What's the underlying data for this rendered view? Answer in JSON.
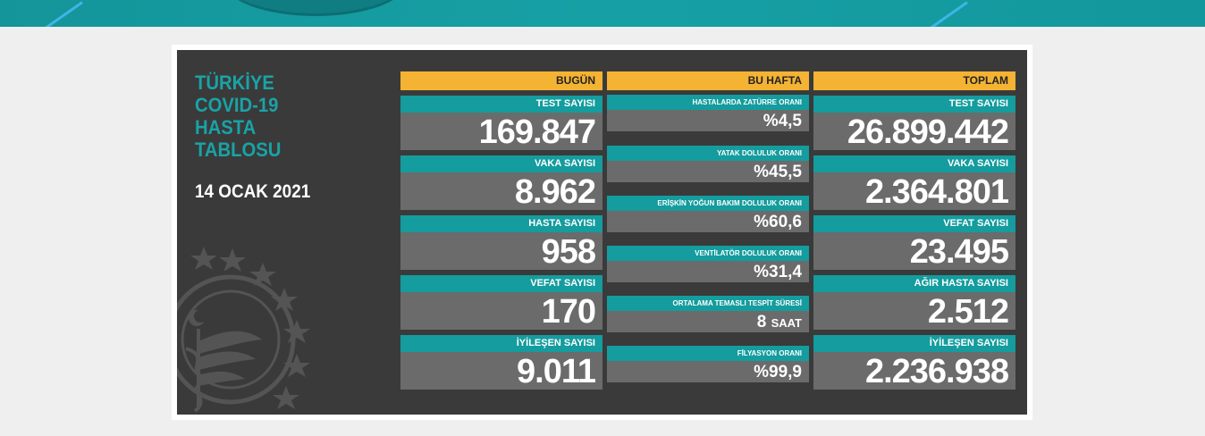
{
  "title": {
    "lines": [
      "TÜRKİYE",
      "COVID-19",
      "HASTA",
      "TABLOSU"
    ]
  },
  "date": "14 OCAK 2021",
  "columns": {
    "today": {
      "header": "BUGÜN",
      "cards": [
        {
          "label": "TEST SAYISI",
          "value": "169.847"
        },
        {
          "label": "VAKA SAYISI",
          "value": "8.962"
        },
        {
          "label": "HASTA SAYISI",
          "value": "958"
        },
        {
          "label": "VEFAT SAYISI",
          "value": "170"
        },
        {
          "label": "İYİLEŞEN SAYISI",
          "value": "9.011"
        }
      ]
    },
    "week": {
      "header": "BU HAFTA",
      "cards": [
        {
          "label": "HASTALARDA ZATÜRRE ORANI",
          "value": "%4,5",
          "unit": ""
        },
        {
          "label": "YATAK DOLULUK ORANI",
          "value": "%45,5",
          "unit": ""
        },
        {
          "label": "ERİŞKİN YOĞUN BAKIM DOLULUK ORANI",
          "value": "%60,6",
          "unit": ""
        },
        {
          "label": "VENTİLATÖR DOLULUK ORANI",
          "value": "%31,4",
          "unit": ""
        },
        {
          "label": "ORTALAMA TEMASLI TESPİT SÜRESİ",
          "value": "8",
          "unit": "SAAT"
        },
        {
          "label": "FİLYASYON ORANI",
          "value": "%99,9",
          "unit": ""
        }
      ]
    },
    "total": {
      "header": "TOPLAM",
      "cards": [
        {
          "label": "TEST SAYISI",
          "value": "26.899.442"
        },
        {
          "label": "VAKA SAYISI",
          "value": "2.364.801"
        },
        {
          "label": "VEFAT SAYISI",
          "value": "23.495"
        },
        {
          "label": "AĞIR HASTA SAYISI",
          "value": "2.512"
        },
        {
          "label": "İYİLEŞEN SAYISI",
          "value": "2.236.938"
        }
      ]
    }
  },
  "colors": {
    "board": "#3a3a3a",
    "teal": "#149c9e",
    "header_yellow": "#f5b333",
    "value_gray": "#6b6b6b",
    "title_teal": "#19a3a6"
  },
  "icons": {
    "emblem": "ministry-of-health-emblem-icon"
  }
}
